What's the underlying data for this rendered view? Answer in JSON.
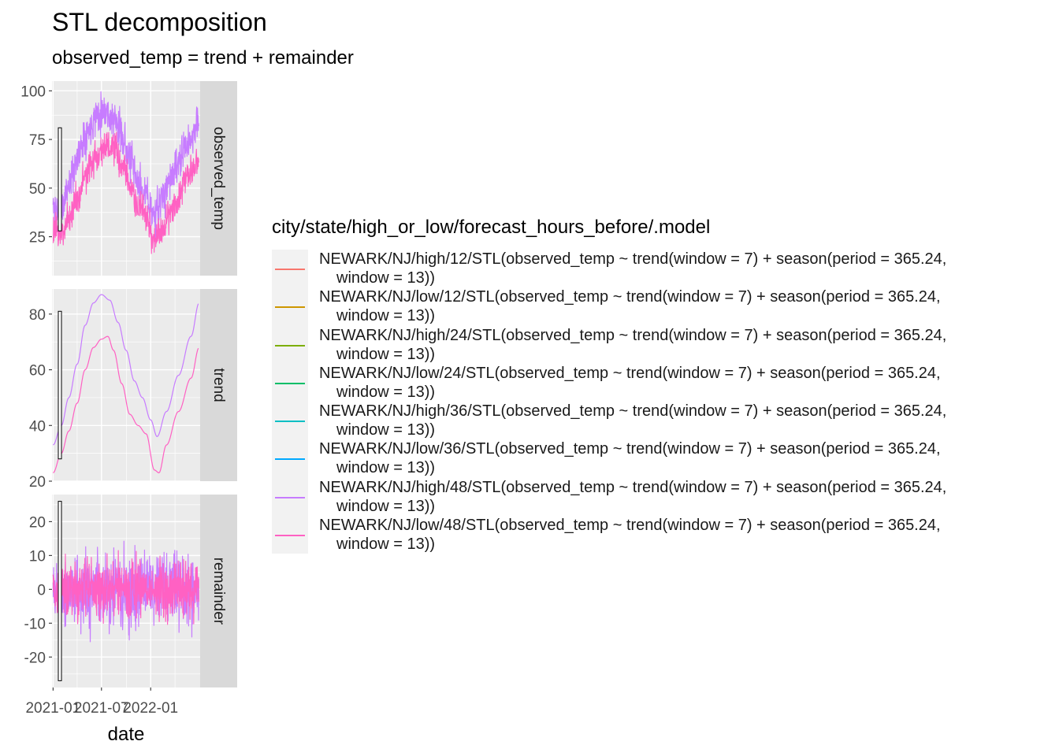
{
  "title": "STL decomposition",
  "subtitle": "observed_temp = trend + remainder",
  "legend": {
    "title": "city/state/high_or_low/forecast_hours_before/.model",
    "model_suffix": "window = 13))",
    "entries": [
      {
        "label": "NEWARK/NJ/high/12/STL(observed_temp ~ trend(window = 7) + season(period = 365.24,",
        "color": "#F8766D"
      },
      {
        "label": "NEWARK/NJ/low/12/STL(observed_temp ~ trend(window = 7) + season(period = 365.24,",
        "color": "#CD9600"
      },
      {
        "label": "NEWARK/NJ/high/24/STL(observed_temp ~ trend(window = 7) + season(period = 365.24,",
        "color": "#7CAE00"
      },
      {
        "label": "NEWARK/NJ/low/24/STL(observed_temp ~ trend(window = 7) + season(period = 365.24,",
        "color": "#00BE67"
      },
      {
        "label": "NEWARK/NJ/high/36/STL(observed_temp ~ trend(window = 7) + season(period = 365.24,",
        "color": "#00BFC4"
      },
      {
        "label": "NEWARK/NJ/low/36/STL(observed_temp ~ trend(window = 7) + season(period = 365.24,",
        "color": "#00A9FF"
      },
      {
        "label": "NEWARK/NJ/high/48/STL(observed_temp ~ trend(window = 7) + season(period = 365.24,",
        "color": "#C77CFF"
      },
      {
        "label": "NEWARK/NJ/low/48/STL(observed_temp ~ trend(window = 7) + season(period = 365.24,",
        "color": "#FF61C3"
      }
    ]
  },
  "chart_data": {
    "type": "line",
    "xlabel": "date",
    "x_ticks": [
      "2021-01",
      "2021-07",
      "2022-01"
    ],
    "x_range": [
      "2020-12-28",
      "2022-07-05"
    ],
    "x_start": "2021-01-01",
    "x_end": "2022-06-30",
    "visible_series": [
      "NEWARK/NJ/high/48",
      "NEWARK/NJ/low/48"
    ],
    "facets": [
      {
        "name": "observed_temp",
        "ylim": [
          5,
          105
        ],
        "y_ticks": [
          25,
          50,
          75,
          100
        ],
        "scale_bar": [
          28,
          81
        ],
        "series": [
          {
            "name": "NEWARK/NJ/high/48",
            "color": "#C77CFF",
            "noise": 9,
            "seed": 11,
            "knots": [
              [
                "2021-01-01",
                40
              ],
              [
                "2021-02-01",
                38
              ],
              [
                "2021-03-01",
                52
              ],
              [
                "2021-04-01",
                65
              ],
              [
                "2021-05-01",
                78
              ],
              [
                "2021-06-15",
                88
              ],
              [
                "2021-07-15",
                90
              ],
              [
                "2021-08-15",
                85
              ],
              [
                "2021-09-15",
                78
              ],
              [
                "2021-10-15",
                65
              ],
              [
                "2021-11-15",
                52
              ],
              [
                "2021-12-15",
                46
              ],
              [
                "2022-01-15",
                36
              ],
              [
                "2022-02-15",
                45
              ],
              [
                "2022-03-15",
                55
              ],
              [
                "2022-04-15",
                62
              ],
              [
                "2022-05-15",
                72
              ],
              [
                "2022-06-30",
                83
              ]
            ]
          },
          {
            "name": "NEWARK/NJ/low/48",
            "color": "#FF61C3",
            "noise": 8,
            "seed": 23,
            "knots": [
              [
                "2021-01-01",
                28
              ],
              [
                "2021-02-01",
                27
              ],
              [
                "2021-03-01",
                35
              ],
              [
                "2021-04-01",
                45
              ],
              [
                "2021-05-01",
                56
              ],
              [
                "2021-06-15",
                67
              ],
              [
                "2021-07-15",
                72
              ],
              [
                "2021-08-15",
                70
              ],
              [
                "2021-09-15",
                62
              ],
              [
                "2021-10-15",
                52
              ],
              [
                "2021-11-15",
                40
              ],
              [
                "2021-12-15",
                35
              ],
              [
                "2022-01-15",
                22
              ],
              [
                "2022-02-15",
                30
              ],
              [
                "2022-03-15",
                38
              ],
              [
                "2022-04-15",
                46
              ],
              [
                "2022-05-15",
                56
              ],
              [
                "2022-06-30",
                66
              ]
            ]
          }
        ]
      },
      {
        "name": "trend",
        "ylim": [
          20,
          89
        ],
        "y_ticks": [
          20,
          40,
          60,
          80
        ],
        "scale_bar": [
          28,
          81
        ],
        "series": [
          {
            "name": "NEWARK/NJ/high/48",
            "color": "#C77CFF",
            "noise": 0,
            "knots": [
              [
                "2021-01-01",
                33
              ],
              [
                "2021-02-01",
                40
              ],
              [
                "2021-03-01",
                50
              ],
              [
                "2021-04-01",
                62
              ],
              [
                "2021-05-01",
                76
              ],
              [
                "2021-06-01",
                84
              ],
              [
                "2021-07-01",
                87
              ],
              [
                "2021-08-01",
                85
              ],
              [
                "2021-09-01",
                77
              ],
              [
                "2021-10-01",
                67
              ],
              [
                "2021-11-01",
                56
              ],
              [
                "2021-12-01",
                50
              ],
              [
                "2022-01-01",
                42
              ],
              [
                "2022-01-25",
                36
              ],
              [
                "2022-03-01",
                45
              ],
              [
                "2022-04-15",
                58
              ],
              [
                "2022-06-01",
                72
              ],
              [
                "2022-07-01",
                84
              ]
            ]
          },
          {
            "name": "NEWARK/NJ/low/48",
            "color": "#FF61C3",
            "noise": 0,
            "knots": [
              [
                "2021-01-01",
                23
              ],
              [
                "2021-02-01",
                30
              ],
              [
                "2021-03-01",
                38
              ],
              [
                "2021-04-01",
                48
              ],
              [
                "2021-05-01",
                60
              ],
              [
                "2021-06-01",
                68
              ],
              [
                "2021-07-01",
                71
              ],
              [
                "2021-07-25",
                72
              ],
              [
                "2021-08-15",
                67
              ],
              [
                "2021-09-15",
                55
              ],
              [
                "2021-10-15",
                44
              ],
              [
                "2021-11-15",
                40
              ],
              [
                "2021-12-15",
                37
              ],
              [
                "2022-01-15",
                24
              ],
              [
                "2022-02-01",
                23
              ],
              [
                "2022-03-01",
                33
              ],
              [
                "2022-04-15",
                45
              ],
              [
                "2022-06-01",
                57
              ],
              [
                "2022-07-01",
                68
              ]
            ]
          }
        ]
      },
      {
        "name": "remainder",
        "ylim": [
          -29,
          28
        ],
        "y_ticks": [
          -20,
          -10,
          0,
          10,
          20
        ],
        "scale_bar": [
          -27,
          26
        ],
        "series": [
          {
            "name": "NEWARK/NJ/high/48",
            "color": "#C77CFF",
            "noise": 10,
            "seed": 5,
            "knots": [
              [
                "2021-01-01",
                0
              ],
              [
                "2022-06-30",
                0
              ]
            ]
          },
          {
            "name": "NEWARK/NJ/low/48",
            "color": "#FF61C3",
            "noise": 8,
            "seed": 41,
            "knots": [
              [
                "2021-01-01",
                0
              ],
              [
                "2022-06-30",
                0
              ]
            ]
          }
        ]
      }
    ]
  }
}
